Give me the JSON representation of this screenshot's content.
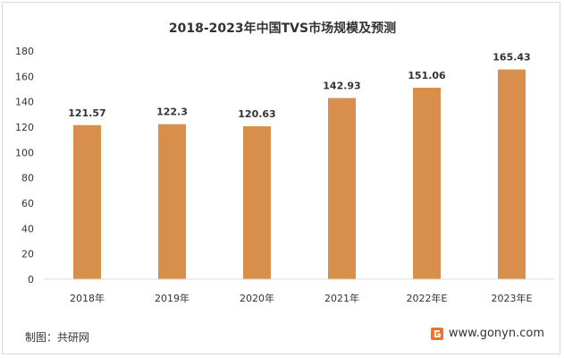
{
  "chart_data": {
    "type": "bar",
    "title": "2018-2023年中国TVS市场规模及预测",
    "categories": [
      "2018年",
      "2019年",
      "2020年",
      "2021年",
      "2022年E",
      "2023年E"
    ],
    "values": [
      121.57,
      122.3,
      120.63,
      142.93,
      151.06,
      165.43
    ],
    "data_labels": [
      "121.57",
      "122.3",
      "120.63",
      "142.93",
      "151.06",
      "165.43"
    ],
    "ylim": [
      0,
      180
    ],
    "yticks": [
      "0",
      "20",
      "40",
      "60",
      "80",
      "100",
      "120",
      "140",
      "160",
      "180"
    ],
    "xlabel": "",
    "ylabel": "",
    "grid": false,
    "legend": "none",
    "bar_color": "#d88f4c"
  },
  "footer": {
    "source": "制图：共研网",
    "website": "www.gonyn.com",
    "logo_icon": "gonyn-logo-icon",
    "logo_color": "#e8772e"
  }
}
